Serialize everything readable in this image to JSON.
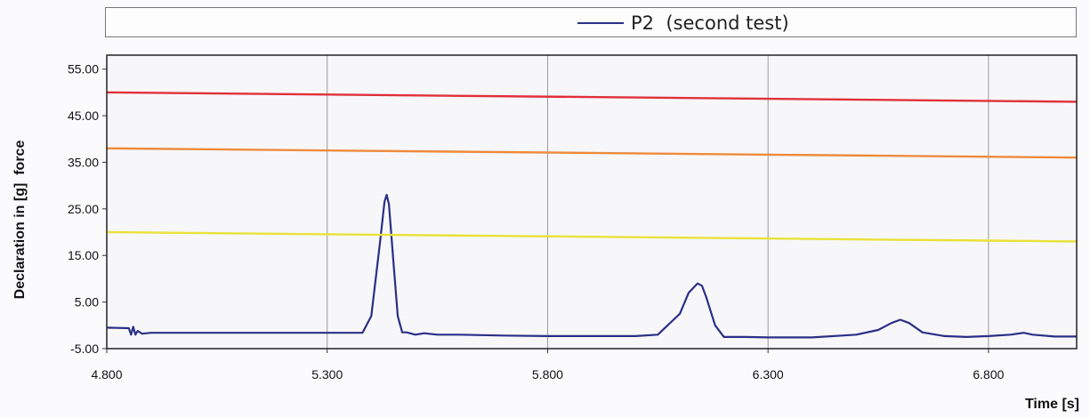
{
  "chart_data": {
    "type": "line",
    "title": "",
    "xlabel": "Time [s]",
    "ylabel": "Declaration in [g]  force",
    "xlim": [
      4.8,
      7.0
    ],
    "ylim": [
      -5,
      58
    ],
    "x_ticks": [
      4.8,
      5.3,
      5.8,
      6.3,
      6.8
    ],
    "x_tick_labels": [
      "4.800",
      "5.300",
      "5.800",
      "6.300",
      "6.800"
    ],
    "y_ticks": [
      -5,
      5,
      15,
      25,
      35,
      45,
      55
    ],
    "y_tick_labels": [
      "-5.00",
      "5.00",
      "15.00",
      "25.00",
      "35.00",
      "45.00",
      "55.00"
    ],
    "grid": true,
    "legend_position": "top-center",
    "series": [
      {
        "name": "P2  (second test)",
        "color": "#2b2f86",
        "x": [
          4.8,
          4.85,
          4.855,
          4.86,
          4.865,
          4.87,
          4.88,
          4.9,
          5.0,
          5.1,
          5.2,
          5.3,
          5.38,
          5.4,
          5.42,
          5.43,
          5.435,
          5.44,
          5.45,
          5.46,
          5.47,
          5.48,
          5.5,
          5.52,
          5.55,
          5.6,
          5.7,
          5.8,
          5.9,
          6.0,
          6.05,
          6.1,
          6.12,
          6.14,
          6.15,
          6.16,
          6.18,
          6.2,
          6.25,
          6.3,
          6.4,
          6.5,
          6.55,
          6.58,
          6.6,
          6.62,
          6.65,
          6.7,
          6.75,
          6.8,
          6.85,
          6.88,
          6.9,
          6.95,
          7.0
        ],
        "y": [
          -0.5,
          -0.6,
          -2.0,
          -0.3,
          -2.0,
          -1.2,
          -1.8,
          -1.6,
          -1.6,
          -1.6,
          -1.6,
          -1.6,
          -1.6,
          2.0,
          18.0,
          26.5,
          28.0,
          26.0,
          14.0,
          2.0,
          -1.5,
          -1.5,
          -2.0,
          -1.7,
          -2.0,
          -2.0,
          -2.2,
          -2.3,
          -2.3,
          -2.3,
          -2.0,
          2.5,
          7.0,
          9.0,
          8.5,
          6.0,
          0.0,
          -2.5,
          -2.5,
          -2.6,
          -2.6,
          -2.0,
          -1.0,
          0.5,
          1.2,
          0.5,
          -1.5,
          -2.3,
          -2.5,
          -2.3,
          -2.0,
          -1.6,
          -2.0,
          -2.4,
          -2.4
        ]
      },
      {
        "color": "#e0303a",
        "x": [
          4.8,
          7.0
        ],
        "y": [
          50.0,
          48.0
        ]
      },
      {
        "color": "#ee8a3c",
        "x": [
          4.8,
          7.0
        ],
        "y": [
          38.0,
          36.0
        ]
      },
      {
        "color": "#e8e23a",
        "x": [
          4.8,
          7.0
        ],
        "y": [
          20.0,
          18.0
        ]
      }
    ]
  }
}
